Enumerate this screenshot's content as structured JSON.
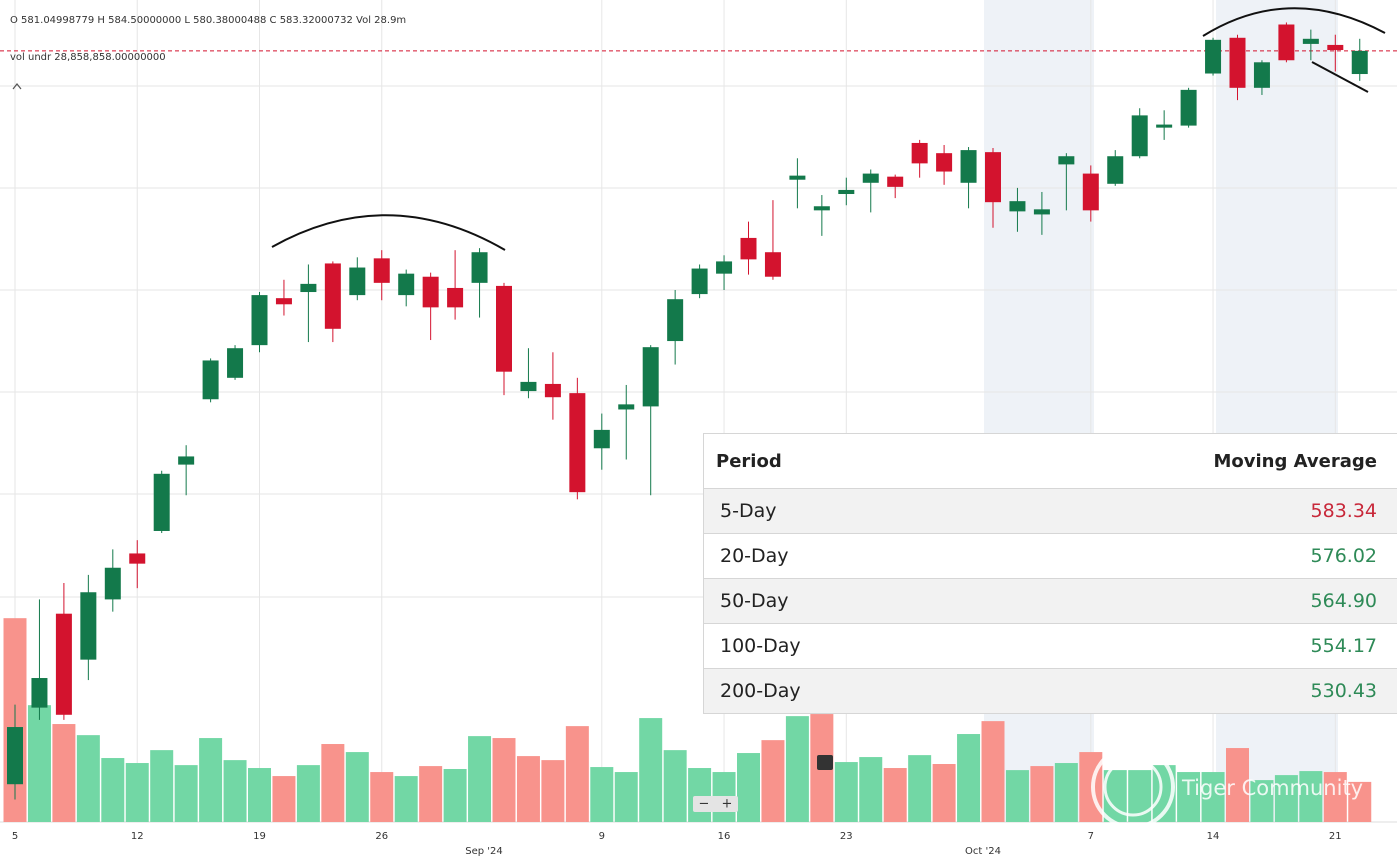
{
  "chart_data": {
    "type": "candlestick",
    "header": {
      "ohlc_line": "O 581.04998779  H 584.50000000  L 580.38000488  C 583.32000732  Vol 28.9m",
      "vol_line": "vol undr  28,858,858.00000000"
    },
    "categories": [
      "5",
      null,
      null,
      null,
      null,
      "12",
      null,
      null,
      null,
      null,
      "19",
      null,
      null,
      null,
      null,
      "26",
      null,
      null,
      null,
      null,
      null,
      null,
      null,
      null,
      "9",
      null,
      null,
      null,
      null,
      "16",
      null,
      null,
      null,
      null,
      "23",
      null,
      null,
      null,
      null,
      null,
      null,
      null,
      null,
      null,
      "7",
      null,
      null,
      null,
      null,
      "14",
      null,
      null,
      null,
      null,
      "21",
      null
    ],
    "month_labels": [
      "Sep '24",
      "Oct '24"
    ],
    "open": [
      511.5,
      519.0,
      528.2,
      523.7,
      529.6,
      534.1,
      536.3,
      542.8,
      549.2,
      551.3,
      554.5,
      559.1,
      559.7,
      562.5,
      559.4,
      563.0,
      559.4,
      561.2,
      560.1,
      560.6,
      560.3,
      550.0,
      550.7,
      549.8,
      544.4,
      548.2,
      548.5,
      554.9,
      559.5,
      561.5,
      565.0,
      563.6,
      570.7,
      567.7,
      569.3,
      570.4,
      571.0,
      574.3,
      573.3,
      570.4,
      573.4,
      567.6,
      567.3,
      572.2,
      571.3,
      570.3,
      573.0,
      575.8,
      576.0,
      581.1,
      584.6,
      579.7,
      585.9,
      584.0,
      583.9,
      581.05
    ],
    "high": [
      519.3,
      529.6,
      531.2,
      532.0,
      534.5,
      535.4,
      542.2,
      544.7,
      553.2,
      554.5,
      559.7,
      560.9,
      562.4,
      562.7,
      563.1,
      563.8,
      561.9,
      561.6,
      563.8,
      564.0,
      560.6,
      554.2,
      553.8,
      551.3,
      547.8,
      550.6,
      554.5,
      559.9,
      562.4,
      563.3,
      566.6,
      568.7,
      572.8,
      569.2,
      570.9,
      571.7,
      571.2,
      574.6,
      574.1,
      573.9,
      573.8,
      569.9,
      569.5,
      573.3,
      572.1,
      573.6,
      577.7,
      577.5,
      579.7,
      584.6,
      584.9,
      582.4,
      586.1,
      585.4,
      584.9,
      584.5
    ],
    "low": [
      510.0,
      517.8,
      517.8,
      521.7,
      528.4,
      530.7,
      536.1,
      539.8,
      548.9,
      551.1,
      553.8,
      557.4,
      554.8,
      554.8,
      558.9,
      558.9,
      558.3,
      555.0,
      557.0,
      557.2,
      549.6,
      549.3,
      547.2,
      539.4,
      542.3,
      543.3,
      539.8,
      552.6,
      559.1,
      559.9,
      561.4,
      560.9,
      567.9,
      565.2,
      568.2,
      567.5,
      568.9,
      570.9,
      570.2,
      567.9,
      566.0,
      565.6,
      565.3,
      567.7,
      566.6,
      570.1,
      572.8,
      574.6,
      575.8,
      580.9,
      578.5,
      579.0,
      582.2,
      582.4,
      581.3,
      580.38
    ],
    "close": [
      517.1,
      521.9,
      518.3,
      530.3,
      532.7,
      533.1,
      541.9,
      543.6,
      553.0,
      554.2,
      559.4,
      558.5,
      560.5,
      556.1,
      562.1,
      560.6,
      561.5,
      558.2,
      558.2,
      563.6,
      551.9,
      550.9,
      549.4,
      540.1,
      546.2,
      548.7,
      554.3,
      559.0,
      562.0,
      562.7,
      562.9,
      561.2,
      571.1,
      568.1,
      569.7,
      571.3,
      570.0,
      572.3,
      571.5,
      573.6,
      568.5,
      568.6,
      567.8,
      573.0,
      567.7,
      573.0,
      577.0,
      576.1,
      579.5,
      584.4,
      579.7,
      582.2,
      582.4,
      584.5,
      583.4,
      583.32
    ],
    "volume": [
      146.9,
      84.2,
      70.6,
      62.6,
      46.1,
      42.5,
      51.8,
      41.0,
      60.5,
      44.6,
      38.9,
      33.1,
      41.0,
      56.2,
      50.4,
      36.0,
      33.1,
      40.3,
      38.2,
      61.9,
      60.5,
      47.5,
      44.6,
      69.1,
      39.6,
      36.0,
      74.9,
      51.8,
      38.9,
      36.0,
      49.7,
      59.0,
      76.3,
      77.8,
      43.2,
      46.8,
      38.9,
      48.2,
      41.8,
      63.4,
      72.7,
      37.4,
      40.3,
      42.5,
      50.4,
      37.4,
      37.4,
      41.0,
      36.0,
      36.0,
      53.3,
      30.2,
      33.8,
      36.7,
      36.0,
      28.9
    ],
    "volume_direction": [
      "down",
      "up",
      "down",
      "up",
      "up",
      "up",
      "up",
      "up",
      "up",
      "up",
      "up",
      "down",
      "up",
      "down",
      "up",
      "down",
      "up",
      "down",
      "up",
      "up",
      "down",
      "down",
      "down",
      "down",
      "up",
      "up",
      "up",
      "up",
      "up",
      "up",
      "up",
      "down",
      "up",
      "down",
      "up",
      "up",
      "down",
      "up",
      "down",
      "up",
      "down",
      "up",
      "down",
      "up",
      "down",
      "up",
      "up",
      "up",
      "up",
      "up",
      "down",
      "up",
      "up",
      "up",
      "down",
      "down"
    ],
    "up_color": "#13794b",
    "down_color": "#d3132e",
    "volume_up_color": "#72d7a5",
    "volume_down_color": "#f8938c",
    "last_price_line_color": "#d3132e",
    "ylim": [
      507.8,
      588.3
    ],
    "vlim": [
      0,
      160
    ],
    "grid": true
  },
  "table": {
    "header": [
      "Period",
      "Moving Average"
    ],
    "rows": [
      [
        "5-Day",
        "583.34"
      ],
      [
        "20-Day",
        "576.02"
      ],
      [
        "50-Day",
        "564.90"
      ],
      [
        "100-Day",
        "554.17"
      ],
      [
        "200-Day",
        "530.43"
      ]
    ],
    "value_colors": [
      "#c8283a",
      "#2e8a57",
      "#2e8a57",
      "#2e8a57",
      "#2e8a57"
    ]
  },
  "watermark": "Tiger Community",
  "zoom_controls": [
    "−",
    "+"
  ]
}
